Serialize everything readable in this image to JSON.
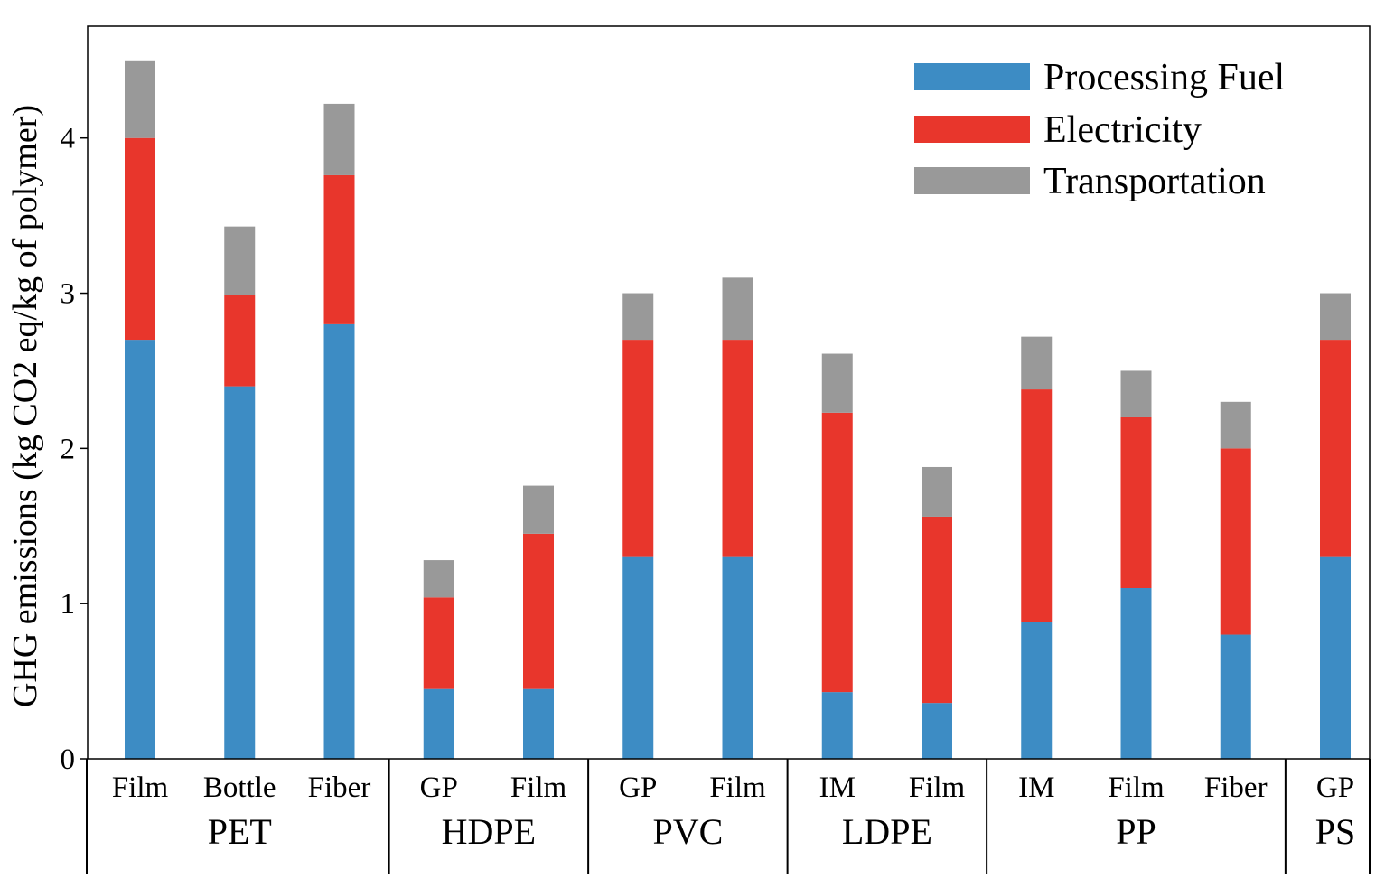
{
  "chart_data": {
    "type": "bar",
    "stacked": true,
    "title": "",
    "xlabel": "",
    "ylabel": "GHG emissions (kg CO2 eq/kg of polymer)",
    "ylim": [
      0,
      4.72
    ],
    "yticks": [
      0,
      1,
      2,
      3,
      4
    ],
    "legend_position": "top-right",
    "categories": [
      "Film",
      "Bottle",
      "Fiber",
      "GP",
      "Film",
      "GP",
      "Film",
      "IM",
      "Film",
      "IM",
      "Film",
      "Fiber",
      "GP"
    ],
    "groups": [
      {
        "label": "PET",
        "size": 3
      },
      {
        "label": "HDPE",
        "size": 2
      },
      {
        "label": "PVC",
        "size": 2
      },
      {
        "label": "LDPE",
        "size": 2
      },
      {
        "label": "PP",
        "size": 3
      },
      {
        "label": "PS",
        "size": 1
      }
    ],
    "series": [
      {
        "name": "Processing Fuel",
        "color": "#3d8cc4",
        "values": [
          2.7,
          2.4,
          2.8,
          0.45,
          0.45,
          1.3,
          1.3,
          0.43,
          0.36,
          0.88,
          1.1,
          0.8,
          1.3
        ]
      },
      {
        "name": "Electricity",
        "color": "#e8362c",
        "values": [
          1.3,
          0.59,
          0.96,
          0.59,
          1.0,
          1.4,
          1.4,
          1.8,
          1.2,
          1.5,
          1.1,
          1.2,
          1.4
        ]
      },
      {
        "name": "Transportation",
        "color": "#999999",
        "values": [
          0.5,
          0.44,
          0.46,
          0.24,
          0.31,
          0.3,
          0.4,
          0.38,
          0.32,
          0.34,
          0.3,
          0.3,
          0.3
        ]
      }
    ]
  }
}
